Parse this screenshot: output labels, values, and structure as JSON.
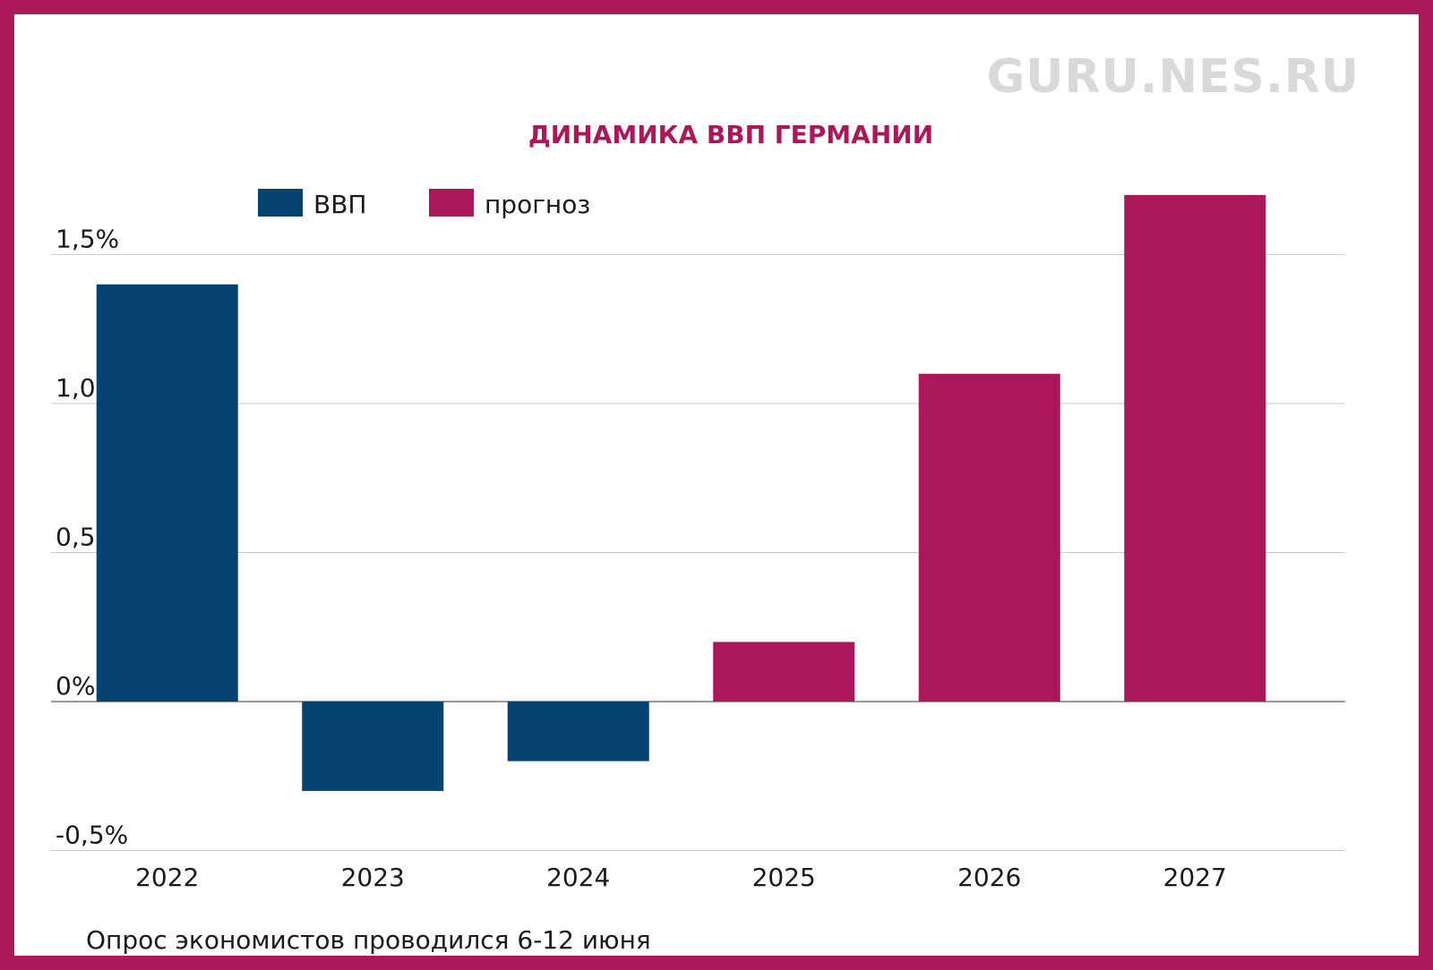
{
  "watermark": "GURU.NES.RU",
  "footnote": "Опрос экономистов проводился 6-12 июня",
  "colors": {
    "actual": "#06426f",
    "forecast": "#ab1759",
    "frame": "#ab1759",
    "grid": "#c8c8c8"
  },
  "chart_data": {
    "type": "bar",
    "title": "ДИНАМИКА ВВП ГЕРМАНИИ",
    "xlabel": "",
    "ylabel": "",
    "categories": [
      "2022",
      "2023",
      "2024",
      "2025",
      "2026",
      "2027"
    ],
    "values": [
      1.4,
      -0.3,
      -0.2,
      0.2,
      1.1,
      1.7
    ],
    "value_kind": [
      "actual",
      "actual",
      "actual",
      "forecast",
      "forecast",
      "forecast"
    ],
    "series": [
      {
        "name": "ВВП",
        "key": "actual"
      },
      {
        "name": "прогноз",
        "key": "forecast"
      }
    ],
    "ylim": [
      -0.5,
      1.7
    ],
    "yticks": [
      -0.5,
      0,
      0.5,
      1.0,
      1.5
    ],
    "ytick_labels": [
      "-0,5%",
      "0%",
      "0,5%",
      "1,0%",
      "1,5%"
    ],
    "grid": true,
    "legend_position": "top-left"
  }
}
